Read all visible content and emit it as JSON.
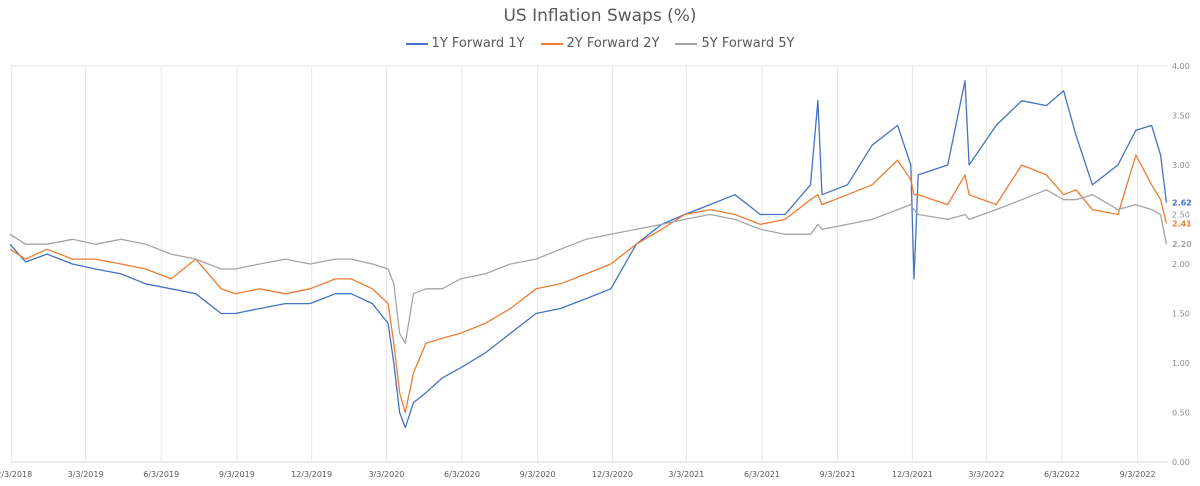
{
  "chart_data": {
    "type": "line",
    "title": "US Inflation Swaps (%)",
    "xlabel": "",
    "ylabel": "",
    "ylim": [
      0,
      4
    ],
    "yticks": [
      "0.00",
      "0.50",
      "1.00",
      "1.50",
      "2.00",
      "2.50",
      "3.00",
      "3.50",
      "4.00"
    ],
    "xlim": [
      "2018-12-01",
      "2022-10-10"
    ],
    "xticks": [
      {
        "date": "2018-12-03",
        "label": "12/3/2018"
      },
      {
        "date": "2019-03-03",
        "label": "3/3/2019"
      },
      {
        "date": "2019-06-03",
        "label": "6/3/2019"
      },
      {
        "date": "2019-09-03",
        "label": "9/3/2019"
      },
      {
        "date": "2019-12-03",
        "label": "12/3/2019"
      },
      {
        "date": "2020-03-03",
        "label": "3/3/2020"
      },
      {
        "date": "2020-06-03",
        "label": "6/3/2020"
      },
      {
        "date": "2020-09-03",
        "label": "9/3/2020"
      },
      {
        "date": "2020-12-03",
        "label": "12/3/2020"
      },
      {
        "date": "2021-03-03",
        "label": "3/3/2021"
      },
      {
        "date": "2021-06-03",
        "label": "6/3/2021"
      },
      {
        "date": "2021-09-03",
        "label": "9/3/2021"
      },
      {
        "date": "2021-12-03",
        "label": "12/3/2021"
      },
      {
        "date": "2022-03-03",
        "label": "3/3/2022"
      },
      {
        "date": "2022-06-03",
        "label": "6/3/2022"
      },
      {
        "date": "2022-09-03",
        "label": "9/3/2022"
      }
    ],
    "grid": "vertical",
    "legend": "top-center",
    "series": [
      {
        "name": "1Y Forward 1Y",
        "color": "#4472c4",
        "end_label": "2.62",
        "points": [
          [
            "2018-12-01",
            2.2
          ],
          [
            "2018-12-20",
            2.02
          ],
          [
            "2019-01-15",
            2.1
          ],
          [
            "2019-02-15",
            2.0
          ],
          [
            "2019-03-15",
            1.95
          ],
          [
            "2019-04-15",
            1.9
          ],
          [
            "2019-05-15",
            1.8
          ],
          [
            "2019-06-15",
            1.75
          ],
          [
            "2019-07-15",
            1.7
          ],
          [
            "2019-08-15",
            1.5
          ],
          [
            "2019-09-01",
            1.5
          ],
          [
            "2019-10-01",
            1.55
          ],
          [
            "2019-11-01",
            1.6
          ],
          [
            "2019-12-01",
            1.6
          ],
          [
            "2020-01-01",
            1.7
          ],
          [
            "2020-01-20",
            1.7
          ],
          [
            "2020-02-15",
            1.6
          ],
          [
            "2020-03-05",
            1.4
          ],
          [
            "2020-03-12",
            1.0
          ],
          [
            "2020-03-19",
            0.5
          ],
          [
            "2020-03-26",
            0.35
          ],
          [
            "2020-04-05",
            0.6
          ],
          [
            "2020-04-20",
            0.7
          ],
          [
            "2020-05-10",
            0.85
          ],
          [
            "2020-06-01",
            0.95
          ],
          [
            "2020-07-01",
            1.1
          ],
          [
            "2020-08-01",
            1.3
          ],
          [
            "2020-09-01",
            1.5
          ],
          [
            "2020-10-01",
            1.55
          ],
          [
            "2020-11-01",
            1.65
          ],
          [
            "2020-12-01",
            1.75
          ],
          [
            "2021-01-01",
            2.2
          ],
          [
            "2021-02-01",
            2.4
          ],
          [
            "2021-03-01",
            2.5
          ],
          [
            "2021-04-01",
            2.6
          ],
          [
            "2021-05-01",
            2.7
          ],
          [
            "2021-06-01",
            2.5
          ],
          [
            "2021-07-01",
            2.5
          ],
          [
            "2021-08-01",
            2.8
          ],
          [
            "2021-08-10",
            3.65
          ],
          [
            "2021-08-15",
            2.7
          ],
          [
            "2021-09-15",
            2.8
          ],
          [
            "2021-10-15",
            3.2
          ],
          [
            "2021-11-15",
            3.4
          ],
          [
            "2021-12-01",
            3.0
          ],
          [
            "2021-12-05",
            1.85
          ],
          [
            "2021-12-10",
            2.9
          ],
          [
            "2022-01-15",
            3.0
          ],
          [
            "2022-02-05",
            3.85
          ],
          [
            "2022-02-10",
            3.0
          ],
          [
            "2022-03-15",
            3.4
          ],
          [
            "2022-04-15",
            3.65
          ],
          [
            "2022-05-15",
            3.6
          ],
          [
            "2022-06-05",
            3.75
          ],
          [
            "2022-06-20",
            3.3
          ],
          [
            "2022-07-10",
            2.8
          ],
          [
            "2022-08-10",
            3.0
          ],
          [
            "2022-09-01",
            3.35
          ],
          [
            "2022-09-20",
            3.4
          ],
          [
            "2022-10-01",
            3.1
          ],
          [
            "2022-10-08",
            2.62
          ]
        ]
      },
      {
        "name": "2Y Forward 2Y",
        "color": "#ed7d31",
        "end_label": "2.41",
        "points": [
          [
            "2018-12-01",
            2.15
          ],
          [
            "2018-12-20",
            2.05
          ],
          [
            "2019-01-15",
            2.15
          ],
          [
            "2019-02-15",
            2.05
          ],
          [
            "2019-03-15",
            2.05
          ],
          [
            "2019-04-15",
            2.0
          ],
          [
            "2019-05-15",
            1.95
          ],
          [
            "2019-06-15",
            1.85
          ],
          [
            "2019-07-15",
            2.05
          ],
          [
            "2019-08-15",
            1.75
          ],
          [
            "2019-09-01",
            1.7
          ],
          [
            "2019-10-01",
            1.75
          ],
          [
            "2019-11-01",
            1.7
          ],
          [
            "2019-12-01",
            1.75
          ],
          [
            "2020-01-01",
            1.85
          ],
          [
            "2020-01-20",
            1.85
          ],
          [
            "2020-02-15",
            1.75
          ],
          [
            "2020-03-05",
            1.6
          ],
          [
            "2020-03-12",
            1.2
          ],
          [
            "2020-03-19",
            0.7
          ],
          [
            "2020-03-26",
            0.5
          ],
          [
            "2020-04-05",
            0.9
          ],
          [
            "2020-04-20",
            1.2
          ],
          [
            "2020-05-10",
            1.25
          ],
          [
            "2020-06-01",
            1.3
          ],
          [
            "2020-07-01",
            1.4
          ],
          [
            "2020-08-01",
            1.55
          ],
          [
            "2020-09-01",
            1.75
          ],
          [
            "2020-10-01",
            1.8
          ],
          [
            "2020-11-01",
            1.9
          ],
          [
            "2020-12-01",
            2.0
          ],
          [
            "2021-01-01",
            2.2
          ],
          [
            "2021-02-01",
            2.35
          ],
          [
            "2021-03-01",
            2.5
          ],
          [
            "2021-04-01",
            2.55
          ],
          [
            "2021-05-01",
            2.5
          ],
          [
            "2021-06-01",
            2.4
          ],
          [
            "2021-07-01",
            2.45
          ],
          [
            "2021-08-01",
            2.65
          ],
          [
            "2021-08-10",
            2.7
          ],
          [
            "2021-08-15",
            2.6
          ],
          [
            "2021-09-15",
            2.7
          ],
          [
            "2021-10-15",
            2.8
          ],
          [
            "2021-11-15",
            3.05
          ],
          [
            "2021-12-01",
            2.85
          ],
          [
            "2021-12-05",
            2.7
          ],
          [
            "2021-12-10",
            2.7
          ],
          [
            "2022-01-15",
            2.6
          ],
          [
            "2022-02-05",
            2.9
          ],
          [
            "2022-02-10",
            2.7
          ],
          [
            "2022-03-15",
            2.6
          ],
          [
            "2022-04-15",
            3.0
          ],
          [
            "2022-05-15",
            2.9
          ],
          [
            "2022-06-05",
            2.7
          ],
          [
            "2022-06-20",
            2.75
          ],
          [
            "2022-07-10",
            2.55
          ],
          [
            "2022-08-10",
            2.5
          ],
          [
            "2022-09-01",
            3.1
          ],
          [
            "2022-09-20",
            2.8
          ],
          [
            "2022-10-01",
            2.65
          ],
          [
            "2022-10-08",
            2.41
          ]
        ]
      },
      {
        "name": "5Y Forward 5Y",
        "color": "#a5a5a5",
        "end_label": "2.20",
        "points": [
          [
            "2018-12-01",
            2.3
          ],
          [
            "2018-12-20",
            2.2
          ],
          [
            "2019-01-15",
            2.2
          ],
          [
            "2019-02-15",
            2.25
          ],
          [
            "2019-03-15",
            2.2
          ],
          [
            "2019-04-15",
            2.25
          ],
          [
            "2019-05-15",
            2.2
          ],
          [
            "2019-06-15",
            2.1
          ],
          [
            "2019-07-15",
            2.05
          ],
          [
            "2019-08-15",
            1.95
          ],
          [
            "2019-09-01",
            1.95
          ],
          [
            "2019-10-01",
            2.0
          ],
          [
            "2019-11-01",
            2.05
          ],
          [
            "2019-12-01",
            2.0
          ],
          [
            "2020-01-01",
            2.05
          ],
          [
            "2020-01-20",
            2.05
          ],
          [
            "2020-02-15",
            2.0
          ],
          [
            "2020-03-05",
            1.95
          ],
          [
            "2020-03-12",
            1.8
          ],
          [
            "2020-03-19",
            1.3
          ],
          [
            "2020-03-26",
            1.2
          ],
          [
            "2020-04-05",
            1.7
          ],
          [
            "2020-04-20",
            1.75
          ],
          [
            "2020-05-10",
            1.75
          ],
          [
            "2020-06-01",
            1.85
          ],
          [
            "2020-07-01",
            1.9
          ],
          [
            "2020-08-01",
            2.0
          ],
          [
            "2020-09-01",
            2.05
          ],
          [
            "2020-10-01",
            2.15
          ],
          [
            "2020-11-01",
            2.25
          ],
          [
            "2020-12-01",
            2.3
          ],
          [
            "2021-01-01",
            2.35
          ],
          [
            "2021-02-01",
            2.4
          ],
          [
            "2021-03-01",
            2.45
          ],
          [
            "2021-04-01",
            2.5
          ],
          [
            "2021-05-01",
            2.45
          ],
          [
            "2021-06-01",
            2.35
          ],
          [
            "2021-07-01",
            2.3
          ],
          [
            "2021-08-01",
            2.3
          ],
          [
            "2021-08-10",
            2.4
          ],
          [
            "2021-08-15",
            2.35
          ],
          [
            "2021-09-15",
            2.4
          ],
          [
            "2021-10-15",
            2.45
          ],
          [
            "2021-11-15",
            2.55
          ],
          [
            "2021-12-01",
            2.6
          ],
          [
            "2021-12-05",
            2.55
          ],
          [
            "2021-12-10",
            2.5
          ],
          [
            "2022-01-15",
            2.45
          ],
          [
            "2022-02-05",
            2.5
          ],
          [
            "2022-02-10",
            2.45
          ],
          [
            "2022-03-15",
            2.55
          ],
          [
            "2022-04-15",
            2.65
          ],
          [
            "2022-05-15",
            2.75
          ],
          [
            "2022-06-05",
            2.65
          ],
          [
            "2022-06-20",
            2.65
          ],
          [
            "2022-07-10",
            2.7
          ],
          [
            "2022-08-10",
            2.55
          ],
          [
            "2022-09-01",
            2.6
          ],
          [
            "2022-09-20",
            2.55
          ],
          [
            "2022-10-01",
            2.5
          ],
          [
            "2022-10-08",
            2.2
          ]
        ]
      }
    ]
  }
}
